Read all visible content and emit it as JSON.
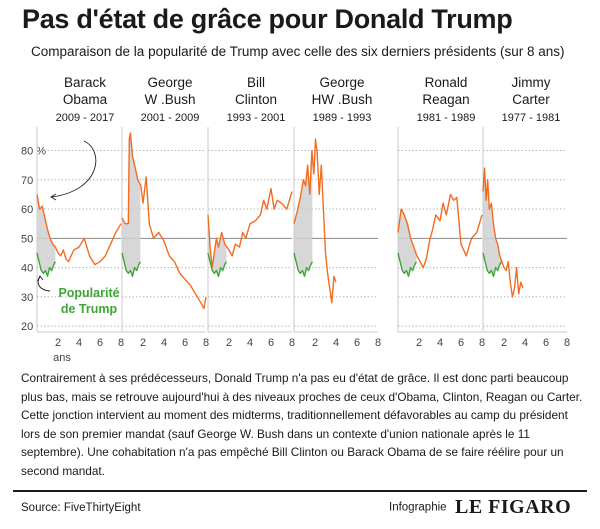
{
  "header": {
    "title": "Pas d'état de grâce pour Donald Trump",
    "subtitle": "Comparaison de la popularité de Trump avec celle des six derniers présidents (sur 8 ans)"
  },
  "body_text": "Contrairement à ses prédécesseurs, Donald Trump n'a pas eu d'état de grâce. Il est donc parti beaucoup plus bas, mais se retrouve aujourd'hui à des niveaux proches de ceux d'Obama, Clinton, Reagan ou Carter. Cette jonction intervient au moment des midterms, traditionnellement défavorables au camp du président lors de son premier mandat (sauf George W. Bush dans un contexte d'union nationale après le 11 septembre). Une cohabitation n'a pas empêché Bill Clinton ou Barack Obama de se faire réélire pour un second mandat.",
  "footer": {
    "source": "Source: FiveThirtyEight",
    "credit_label": "Infographie",
    "credit_brand": "LE FIGARO"
  },
  "colors": {
    "president": "#f26d21",
    "trump": "#3fa535",
    "fill": "#d0d0d0",
    "grid": "#b5b5b5",
    "text": "#1a1a1a"
  },
  "chart_data": {
    "type": "line",
    "title": "Pas d'état de grâce pour Donald Trump",
    "subtitle": "Comparaison de la popularité de Trump avec celle des six derniers présidents (sur 8 ans)",
    "xlabel": "ans",
    "ylabel": "",
    "ylim": [
      19,
      86
    ],
    "xlim": [
      0,
      8
    ],
    "y_ticks": [
      20,
      30,
      40,
      50,
      60,
      70,
      80
    ],
    "y_tick_labels": [
      "20",
      "30",
      "40",
      "50",
      "60",
      "70",
      "80 %"
    ],
    "x_ticks": [
      2,
      4,
      6,
      8
    ],
    "x_tick_labels": [
      "2",
      "4",
      "6",
      "8"
    ],
    "grid": true,
    "reference_line": 50,
    "annotation": {
      "text": [
        "Popularité",
        "de Trump"
      ]
    },
    "trump_series": {
      "name": "Popularité de Trump",
      "x": [
        0,
        0.2,
        0.4,
        0.6,
        0.8,
        1.0,
        1.2,
        1.4,
        1.6,
        1.75
      ],
      "y": [
        45,
        42,
        39,
        38,
        39,
        37,
        40,
        39,
        41,
        42
      ]
    },
    "panels": [
      {
        "name": "Barack Obama",
        "name_lines": [
          "Barack",
          "Obama"
        ],
        "years": "2009 - 2017",
        "x": [
          0,
          0.25,
          0.5,
          0.75,
          1,
          1.25,
          1.5,
          1.75,
          2,
          2.25,
          2.5,
          2.75,
          3,
          3.25,
          3.5,
          4,
          4.5,
          5,
          5.5,
          6,
          6.5,
          7,
          7.5,
          8
        ],
        "y": [
          65,
          60,
          61,
          57,
          53,
          50,
          48,
          47,
          45,
          44,
          46,
          43,
          42,
          44,
          46,
          47,
          50,
          44,
          41,
          42,
          44,
          48,
          52,
          55
        ]
      },
      {
        "name": "George W .Bush",
        "name_lines": [
          "George",
          "W .Bush"
        ],
        "years": "2001 - 2009",
        "x": [
          0,
          0.3,
          0.6,
          0.7,
          0.8,
          1,
          1.2,
          1.5,
          1.8,
          2,
          2.3,
          2.6,
          3,
          3.5,
          4,
          4.5,
          5,
          5.5,
          6,
          6.5,
          7,
          7.5,
          7.8,
          8
        ],
        "y": [
          57,
          55,
          55,
          84,
          86,
          78,
          75,
          70,
          68,
          62,
          71,
          55,
          50,
          52,
          49,
          44,
          42,
          38,
          36,
          34,
          31,
          28,
          26,
          30
        ]
      },
      {
        "name": "Bill Clinton",
        "name_lines": [
          "Bill",
          "Clinton"
        ],
        "years": "1993 - 2001",
        "x": [
          0,
          0.2,
          0.4,
          0.6,
          0.8,
          1,
          1.3,
          1.6,
          2,
          2.3,
          2.6,
          3,
          3.3,
          3.6,
          4,
          4.5,
          5,
          5.3,
          5.6,
          6,
          6.3,
          6.6,
          7,
          7.5,
          8
        ],
        "y": [
          58,
          47,
          40,
          45,
          50,
          47,
          52,
          48,
          46,
          44,
          48,
          47,
          52,
          50,
          55,
          56,
          58,
          63,
          60,
          67,
          60,
          63,
          62,
          60,
          66
        ]
      },
      {
        "name": "George HW .Bush",
        "name_lines": [
          "George",
          "HW .Bush"
        ],
        "years": "1989 - 1993",
        "x": [
          0,
          0.3,
          0.6,
          0.9,
          1.1,
          1.3,
          1.5,
          1.7,
          1.9,
          2.05,
          2.1,
          2.2,
          2.4,
          2.6,
          2.8,
          3,
          3.2,
          3.4,
          3.6,
          3.8,
          4
        ],
        "y": [
          55,
          59,
          64,
          70,
          68,
          75,
          65,
          80,
          72,
          84,
          82,
          80,
          65,
          75,
          60,
          45,
          38,
          33,
          28,
          37,
          35
        ]
      },
      {
        "name": "Ronald Reagan",
        "name_lines": [
          "Ronald",
          "Reagan"
        ],
        "years": "1981 - 1989",
        "x": [
          0,
          0.3,
          0.6,
          0.9,
          1.2,
          1.5,
          1.8,
          2.1,
          2.4,
          2.7,
          3,
          3.3,
          3.6,
          4,
          4.3,
          4.6,
          5,
          5.3,
          5.6,
          6,
          6.5,
          7,
          7.5,
          8
        ],
        "y": [
          52,
          60,
          58,
          55,
          50,
          47,
          44,
          42,
          40,
          43,
          49,
          53,
          58,
          56,
          62,
          58,
          65,
          63,
          64,
          48,
          44,
          50,
          52,
          58
        ]
      },
      {
        "name": "Jimmy Carter",
        "name_lines": [
          "Jimmy",
          "Carter"
        ],
        "years": "1977 - 1981",
        "x": [
          0,
          0.15,
          0.3,
          0.45,
          0.6,
          0.8,
          1,
          1.2,
          1.4,
          1.6,
          1.8,
          2,
          2.2,
          2.4,
          2.6,
          2.8,
          3,
          3.2,
          3.4,
          3.6,
          3.8
        ],
        "y": [
          66,
          74,
          63,
          70,
          60,
          62,
          55,
          50,
          48,
          44,
          42,
          40,
          39,
          42,
          35,
          30,
          33,
          40,
          31,
          35,
          33
        ]
      }
    ]
  }
}
